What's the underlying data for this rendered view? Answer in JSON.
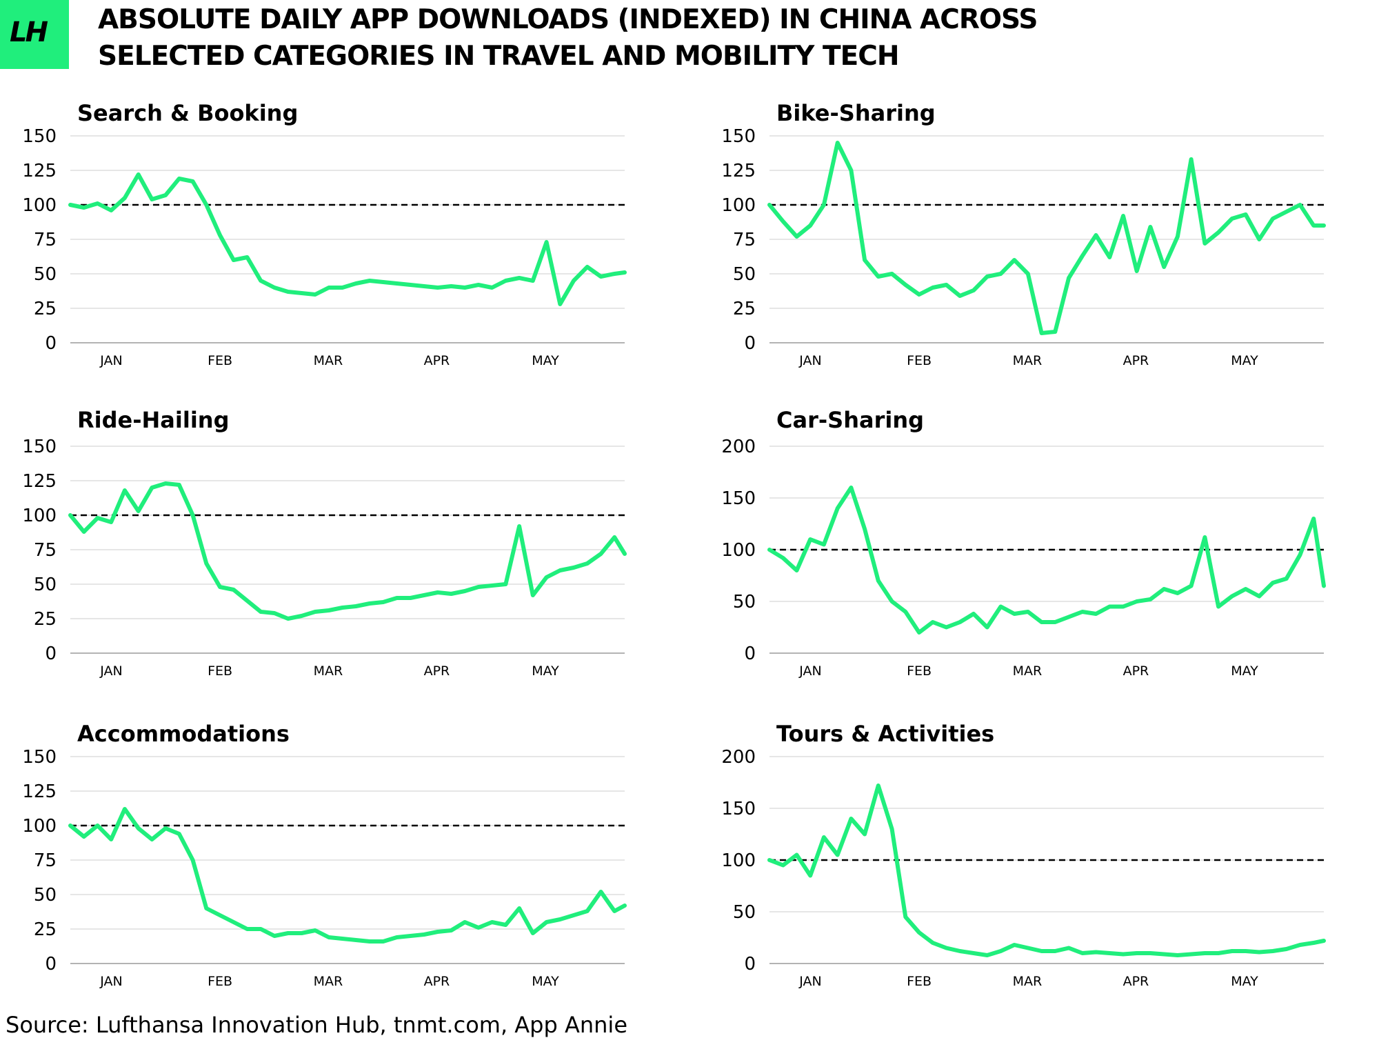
{
  "logo": {
    "text": "LH"
  },
  "title": "ABSOLUTE DAILY APP DOWNLOADS (INDEXED) IN CHINA ACROSS SELECTED CATEGORIES IN TRAVEL AND MOBILITY TECH",
  "source": "Source: Lufthansa Innovation Hub, tnmt.com, App Annie",
  "colors": {
    "series": "#20ee7c",
    "reference_line": "#000000",
    "gridline": "#d8d8d8"
  },
  "chart_data": [
    {
      "type": "line",
      "title": "Search & Booking",
      "months": [
        "JAN",
        "FEB",
        "MAR",
        "APR",
        "MAY"
      ],
      "ylim": [
        0,
        150
      ],
      "yticks": [
        0,
        25,
        50,
        75,
        100,
        125,
        150
      ],
      "reference_line": 100,
      "x": [
        0,
        4,
        8,
        12,
        16,
        20,
        24,
        28,
        32,
        36,
        40,
        44,
        48,
        52,
        56,
        60,
        64,
        68,
        72,
        76,
        80,
        84,
        88,
        92,
        96,
        100,
        104,
        108,
        112,
        116,
        120,
        124,
        128,
        132,
        136,
        140,
        144,
        148,
        152,
        156,
        160,
        163
      ],
      "values": [
        100,
        98,
        101,
        96,
        105,
        122,
        104,
        107,
        119,
        117,
        100,
        78,
        60,
        62,
        45,
        40,
        37,
        36,
        35,
        40,
        40,
        43,
        45,
        44,
        43,
        42,
        41,
        40,
        41,
        40,
        42,
        40,
        45,
        47,
        45,
        73,
        28,
        45,
        55,
        48,
        50,
        51
      ]
    },
    {
      "type": "line",
      "title": "Bike-Sharing",
      "months": [
        "JAN",
        "FEB",
        "MAR",
        "APR",
        "MAY"
      ],
      "ylim": [
        0,
        150
      ],
      "yticks": [
        0,
        25,
        50,
        75,
        100,
        125,
        150
      ],
      "reference_line": 100,
      "x": [
        0,
        4,
        8,
        12,
        16,
        20,
        24,
        28,
        32,
        36,
        40,
        44,
        48,
        52,
        56,
        60,
        64,
        68,
        72,
        76,
        80,
        84,
        88,
        92,
        96,
        100,
        104,
        108,
        112,
        116,
        120,
        124,
        128,
        132,
        136,
        140,
        144,
        148,
        152,
        156,
        160,
        163
      ],
      "values": [
        100,
        88,
        77,
        85,
        100,
        145,
        125,
        60,
        48,
        50,
        42,
        35,
        40,
        42,
        34,
        38,
        48,
        50,
        60,
        50,
        7,
        8,
        47,
        63,
        78,
        62,
        92,
        52,
        84,
        55,
        77,
        133,
        72,
        80,
        90,
        93,
        75,
        90,
        95,
        100,
        85,
        85
      ]
    },
    {
      "type": "line",
      "title": "Ride-Hailing",
      "months": [
        "JAN",
        "FEB",
        "MAR",
        "APR",
        "MAY"
      ],
      "ylim": [
        0,
        150
      ],
      "yticks": [
        0,
        25,
        50,
        75,
        100,
        125,
        150
      ],
      "reference_line": 100,
      "x": [
        0,
        4,
        8,
        12,
        16,
        20,
        24,
        28,
        32,
        36,
        40,
        44,
        48,
        52,
        56,
        60,
        64,
        68,
        72,
        76,
        80,
        84,
        88,
        92,
        96,
        100,
        104,
        108,
        112,
        116,
        120,
        124,
        128,
        132,
        136,
        140,
        144,
        148,
        152,
        156,
        160,
        163
      ],
      "values": [
        100,
        88,
        98,
        95,
        118,
        103,
        120,
        123,
        122,
        100,
        65,
        48,
        46,
        38,
        30,
        29,
        25,
        27,
        30,
        31,
        33,
        34,
        36,
        37,
        40,
        40,
        42,
        44,
        43,
        45,
        48,
        49,
        50,
        92,
        42,
        55,
        60,
        62,
        65,
        72,
        84,
        72
      ]
    },
    {
      "type": "line",
      "title": "Car-Sharing",
      "months": [
        "JAN",
        "FEB",
        "MAR",
        "APR",
        "MAY"
      ],
      "ylim": [
        0,
        200
      ],
      "yticks": [
        0,
        50,
        100,
        150,
        200
      ],
      "reference_line": 100,
      "x": [
        0,
        4,
        8,
        12,
        16,
        20,
        24,
        28,
        32,
        36,
        40,
        44,
        48,
        52,
        56,
        60,
        64,
        68,
        72,
        76,
        80,
        84,
        88,
        92,
        96,
        100,
        104,
        108,
        112,
        116,
        120,
        124,
        128,
        132,
        136,
        140,
        144,
        148,
        152,
        156,
        160,
        163
      ],
      "values": [
        100,
        92,
        80,
        110,
        105,
        140,
        160,
        120,
        70,
        50,
        40,
        20,
        30,
        25,
        30,
        38,
        25,
        45,
        38,
        40,
        30,
        30,
        35,
        40,
        38,
        45,
        45,
        50,
        52,
        62,
        58,
        65,
        112,
        45,
        55,
        62,
        55,
        68,
        72,
        95,
        130,
        65
      ]
    },
    {
      "type": "line",
      "title": "Accommodations",
      "months": [
        "JAN",
        "FEB",
        "MAR",
        "APR",
        "MAY"
      ],
      "ylim": [
        0,
        150
      ],
      "yticks": [
        0,
        25,
        50,
        75,
        100,
        125,
        150
      ],
      "reference_line": 100,
      "x": [
        0,
        4,
        8,
        12,
        16,
        20,
        24,
        28,
        32,
        36,
        40,
        44,
        48,
        52,
        56,
        60,
        64,
        68,
        72,
        76,
        80,
        84,
        88,
        92,
        96,
        100,
        104,
        108,
        112,
        116,
        120,
        124,
        128,
        132,
        136,
        140,
        144,
        148,
        152,
        156,
        160,
        163
      ],
      "values": [
        100,
        92,
        100,
        90,
        112,
        98,
        90,
        98,
        94,
        75,
        40,
        35,
        30,
        25,
        25,
        20,
        22,
        22,
        24,
        19,
        18,
        17,
        16,
        16,
        19,
        20,
        21,
        23,
        24,
        30,
        26,
        30,
        28,
        40,
        22,
        30,
        32,
        35,
        38,
        52,
        38,
        42
      ]
    },
    {
      "type": "line",
      "title": "Tours & Activities",
      "months": [
        "JAN",
        "FEB",
        "MAR",
        "APR",
        "MAY"
      ],
      "ylim": [
        0,
        200
      ],
      "yticks": [
        0,
        50,
        100,
        150,
        200
      ],
      "reference_line": 100,
      "x": [
        0,
        4,
        8,
        12,
        16,
        20,
        24,
        28,
        32,
        36,
        40,
        44,
        48,
        52,
        56,
        60,
        64,
        68,
        72,
        76,
        80,
        84,
        88,
        92,
        96,
        100,
        104,
        108,
        112,
        116,
        120,
        124,
        128,
        132,
        136,
        140,
        144,
        148,
        152,
        156,
        160,
        163
      ],
      "values": [
        100,
        95,
        105,
        85,
        122,
        105,
        140,
        125,
        172,
        130,
        45,
        30,
        20,
        15,
        12,
        10,
        8,
        12,
        18,
        15,
        12,
        12,
        15,
        10,
        11,
        10,
        9,
        10,
        10,
        9,
        8,
        9,
        10,
        10,
        12,
        12,
        11,
        12,
        14,
        18,
        20,
        22
      ]
    }
  ]
}
